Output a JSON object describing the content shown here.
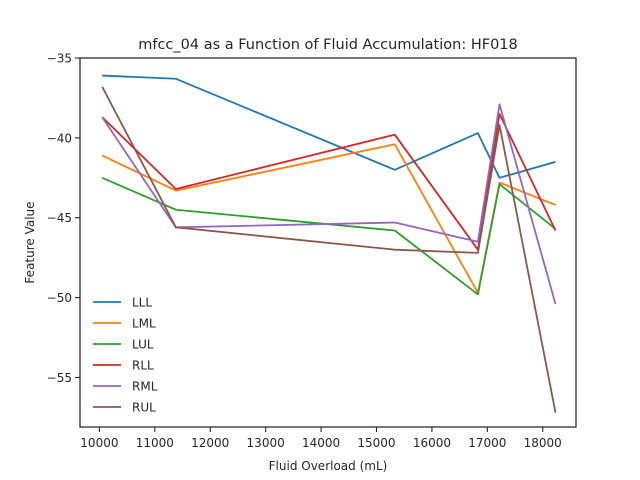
{
  "chart_data": {
    "type": "line",
    "title": "mfcc_04 as a Function of Fluid Accumulation: HF018",
    "xlabel": "Fluid Overload (mL)",
    "ylabel": "Feature Value",
    "xlim": [
      9650,
      18600
    ],
    "ylim": [
      -58.1,
      -35
    ],
    "xticks": [
      10000,
      11000,
      12000,
      13000,
      14000,
      15000,
      16000,
      17000,
      18000
    ],
    "yticks": [
      -35,
      -40,
      -45,
      -50,
      -55
    ],
    "ytick_labels": [
      "−35",
      "−40",
      "−45",
      "−50",
      "−55"
    ],
    "x": [
      10050,
      11380,
      15330,
      16830,
      17220,
      18230
    ],
    "legend_position": "lower-left",
    "grid": false,
    "series": [
      {
        "name": "LLL",
        "color": "#1f77b4",
        "values": [
          -36.1,
          -36.3,
          -42.0,
          -39.7,
          -42.5,
          -41.5
        ]
      },
      {
        "name": "LML",
        "color": "#ff7f0e",
        "values": [
          -41.1,
          -43.3,
          -40.4,
          -49.7,
          -42.8,
          -44.2
        ]
      },
      {
        "name": "LUL",
        "color": "#2ca02c",
        "values": [
          -42.5,
          -44.5,
          -45.8,
          -49.8,
          -42.9,
          -45.7
        ]
      },
      {
        "name": "RLL",
        "color": "#d62728",
        "values": [
          -38.7,
          -43.2,
          -39.8,
          -47.0,
          -38.5,
          -45.8
        ]
      },
      {
        "name": "RML",
        "color": "#9467bd",
        "values": [
          -38.7,
          -45.6,
          -45.3,
          -46.5,
          -37.9,
          -50.4
        ]
      },
      {
        "name": "RUL",
        "color": "#8c564b",
        "values": [
          -36.8,
          -45.6,
          -47.0,
          -47.2,
          -39.2,
          -57.2
        ]
      }
    ]
  }
}
